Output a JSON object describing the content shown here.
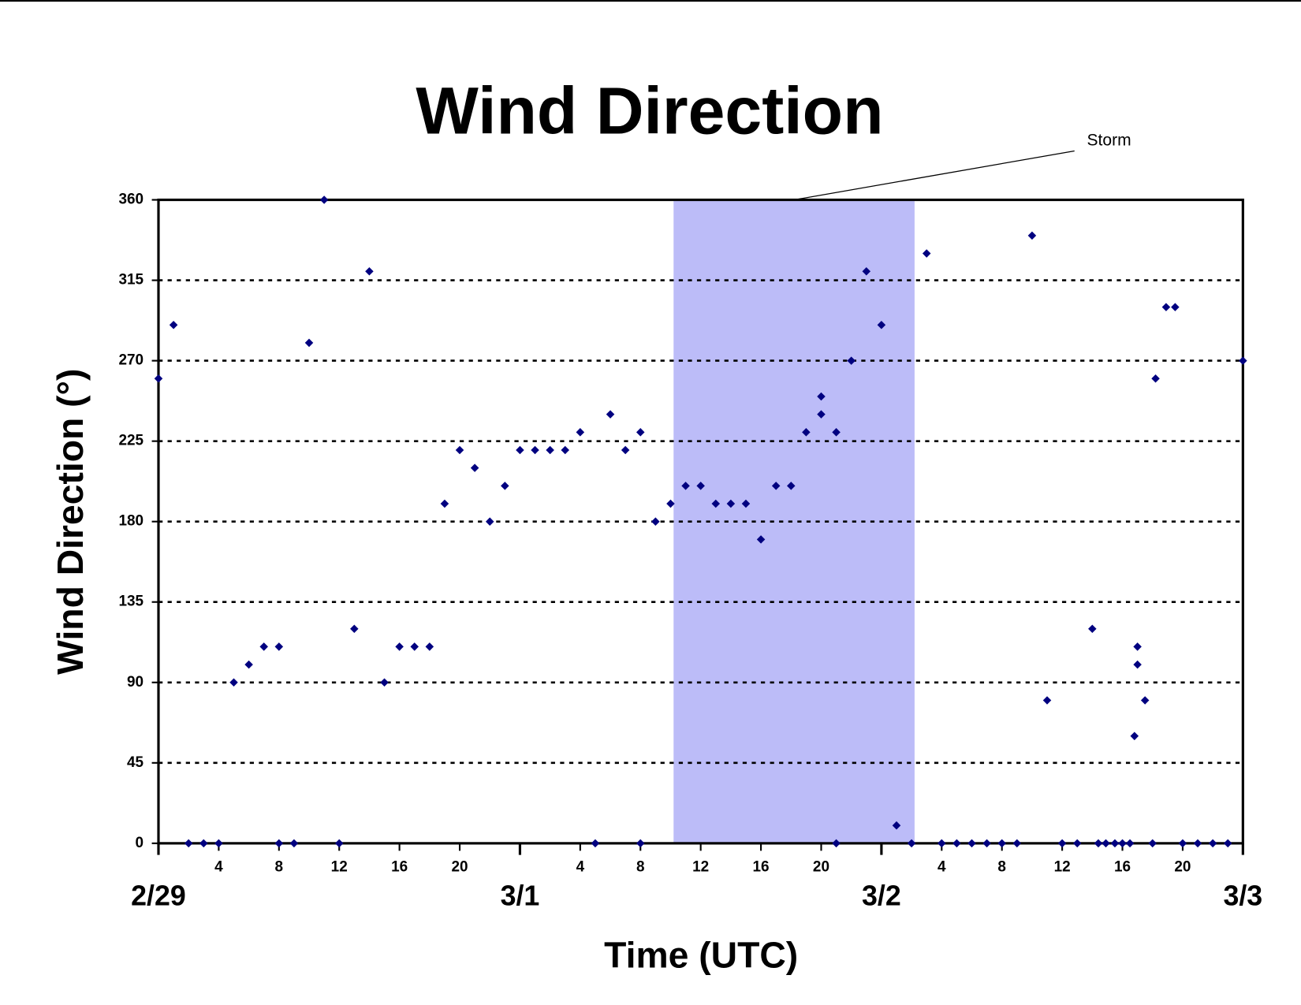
{
  "chart_data": {
    "type": "scatter",
    "title": "Wind Direction",
    "x_label": "Time (UTC)",
    "y_label": "Wind Direction (°)",
    "xlim": [
      0,
      72
    ],
    "ylim": [
      0,
      360
    ],
    "yticks": [
      0,
      45,
      90,
      135,
      180,
      225,
      270,
      315,
      360
    ],
    "xticks": [
      {
        "value": 4,
        "label": "4"
      },
      {
        "value": 8,
        "label": "8"
      },
      {
        "value": 12,
        "label": "12"
      },
      {
        "value": 16,
        "label": "16"
      },
      {
        "value": 20,
        "label": "20"
      },
      {
        "value": 28,
        "label": "4"
      },
      {
        "value": 32,
        "label": "8"
      },
      {
        "value": 36,
        "label": "12"
      },
      {
        "value": 40,
        "label": "16"
      },
      {
        "value": 44,
        "label": "20"
      },
      {
        "value": 52,
        "label": "4"
      },
      {
        "value": 56,
        "label": "8"
      },
      {
        "value": 60,
        "label": "12"
      },
      {
        "value": 64,
        "label": "16"
      },
      {
        "value": 68,
        "label": "20"
      }
    ],
    "date_ticks": [
      {
        "value": 0,
        "label": "2/29"
      },
      {
        "value": 24,
        "label": "3/1"
      },
      {
        "value": 48,
        "label": "3/2"
      },
      {
        "value": 72,
        "label": "3/3"
      }
    ],
    "grid": true,
    "storm": {
      "label": "Storm",
      "start": 34.2,
      "end": 50.2,
      "color": "#bcbcf8"
    },
    "series": [
      {
        "name": "Wind Direction",
        "color": "#000080",
        "x": [
          0,
          1,
          2,
          3,
          4,
          5,
          6,
          7,
          8,
          8,
          9,
          10,
          11,
          12,
          13,
          14,
          15,
          16,
          17,
          18,
          19,
          20,
          21,
          22,
          23,
          24,
          25,
          26,
          27,
          28,
          29,
          30,
          31,
          32,
          32,
          33,
          34,
          35,
          36,
          37,
          38,
          39,
          40,
          41,
          42,
          43,
          44,
          44,
          45,
          45,
          46,
          47,
          48,
          49,
          50,
          51,
          52,
          53,
          54,
          55,
          56,
          57,
          58,
          59,
          60,
          61,
          62,
          62.4,
          62.9,
          63.5,
          64,
          64.5,
          64.8,
          65,
          65,
          65.5,
          66,
          66.2,
          66.9,
          67.5,
          68,
          69,
          70,
          71,
          72
        ],
        "values": [
          260,
          290,
          0,
          0,
          0,
          90,
          100,
          110,
          110,
          0,
          0,
          280,
          360,
          0,
          120,
          320,
          90,
          110,
          110,
          110,
          190,
          220,
          210,
          180,
          200,
          220,
          220,
          220,
          220,
          230,
          0,
          240,
          220,
          230,
          0,
          180,
          190,
          200,
          200,
          190,
          190,
          190,
          170,
          200,
          200,
          230,
          250,
          240,
          0,
          230,
          270,
          320,
          290,
          10,
          0,
          330,
          0,
          0,
          0,
          0,
          0,
          0,
          340,
          80,
          0,
          0,
          120,
          0,
          0,
          0,
          0,
          0,
          60,
          110,
          100,
          80,
          0,
          260,
          300,
          300,
          0,
          0,
          0,
          0,
          270
        ]
      }
    ]
  }
}
